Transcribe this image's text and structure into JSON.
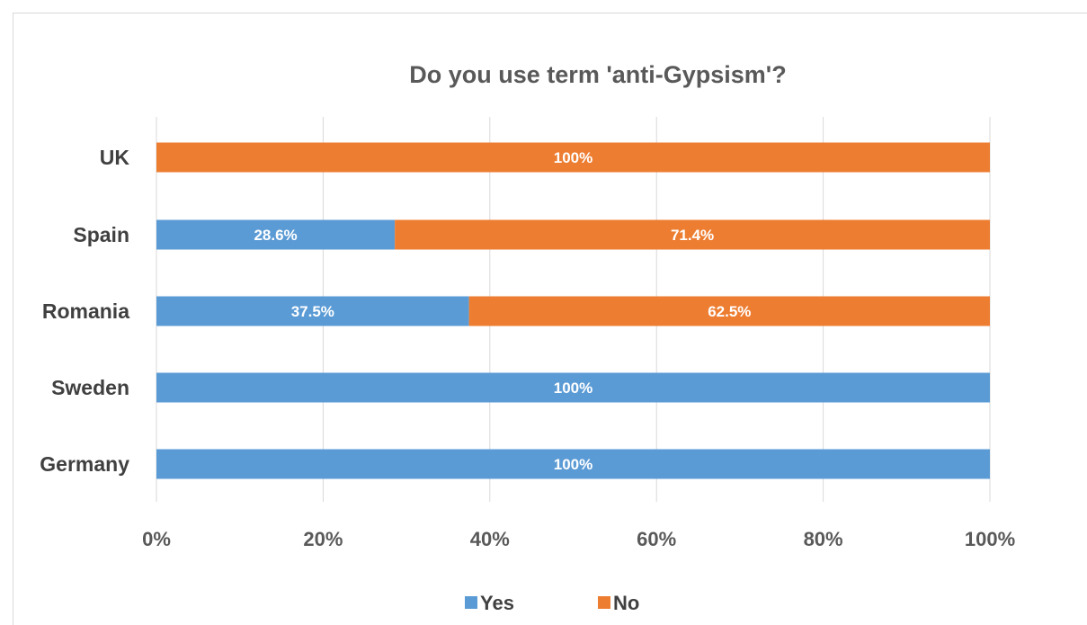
{
  "chart_data": {
    "type": "bar",
    "orientation": "horizontal",
    "stacking": "percent",
    "title": "Do you  use  term 'anti-Gypsism'?",
    "categories": [
      "UK",
      "Spain",
      "Romania",
      "Sweden",
      "Germany"
    ],
    "series": [
      {
        "name": "Yes",
        "color": "#5b9bd5",
        "values": [
          0,
          28.6,
          37.5,
          100,
          100
        ],
        "labels": [
          "",
          "28.6%",
          "37.5%",
          "100%",
          "100%"
        ]
      },
      {
        "name": "No",
        "color": "#ed7d31",
        "values": [
          100,
          71.4,
          62.5,
          0,
          0
        ],
        "labels": [
          "100%",
          "71.4%",
          "62.5%",
          "",
          ""
        ]
      }
    ],
    "xlim": [
      0,
      100
    ],
    "x_ticks": [
      "0%",
      "20%",
      "40%",
      "60%",
      "80%",
      "100%"
    ],
    "grid": true,
    "legend_position": "bottom"
  }
}
